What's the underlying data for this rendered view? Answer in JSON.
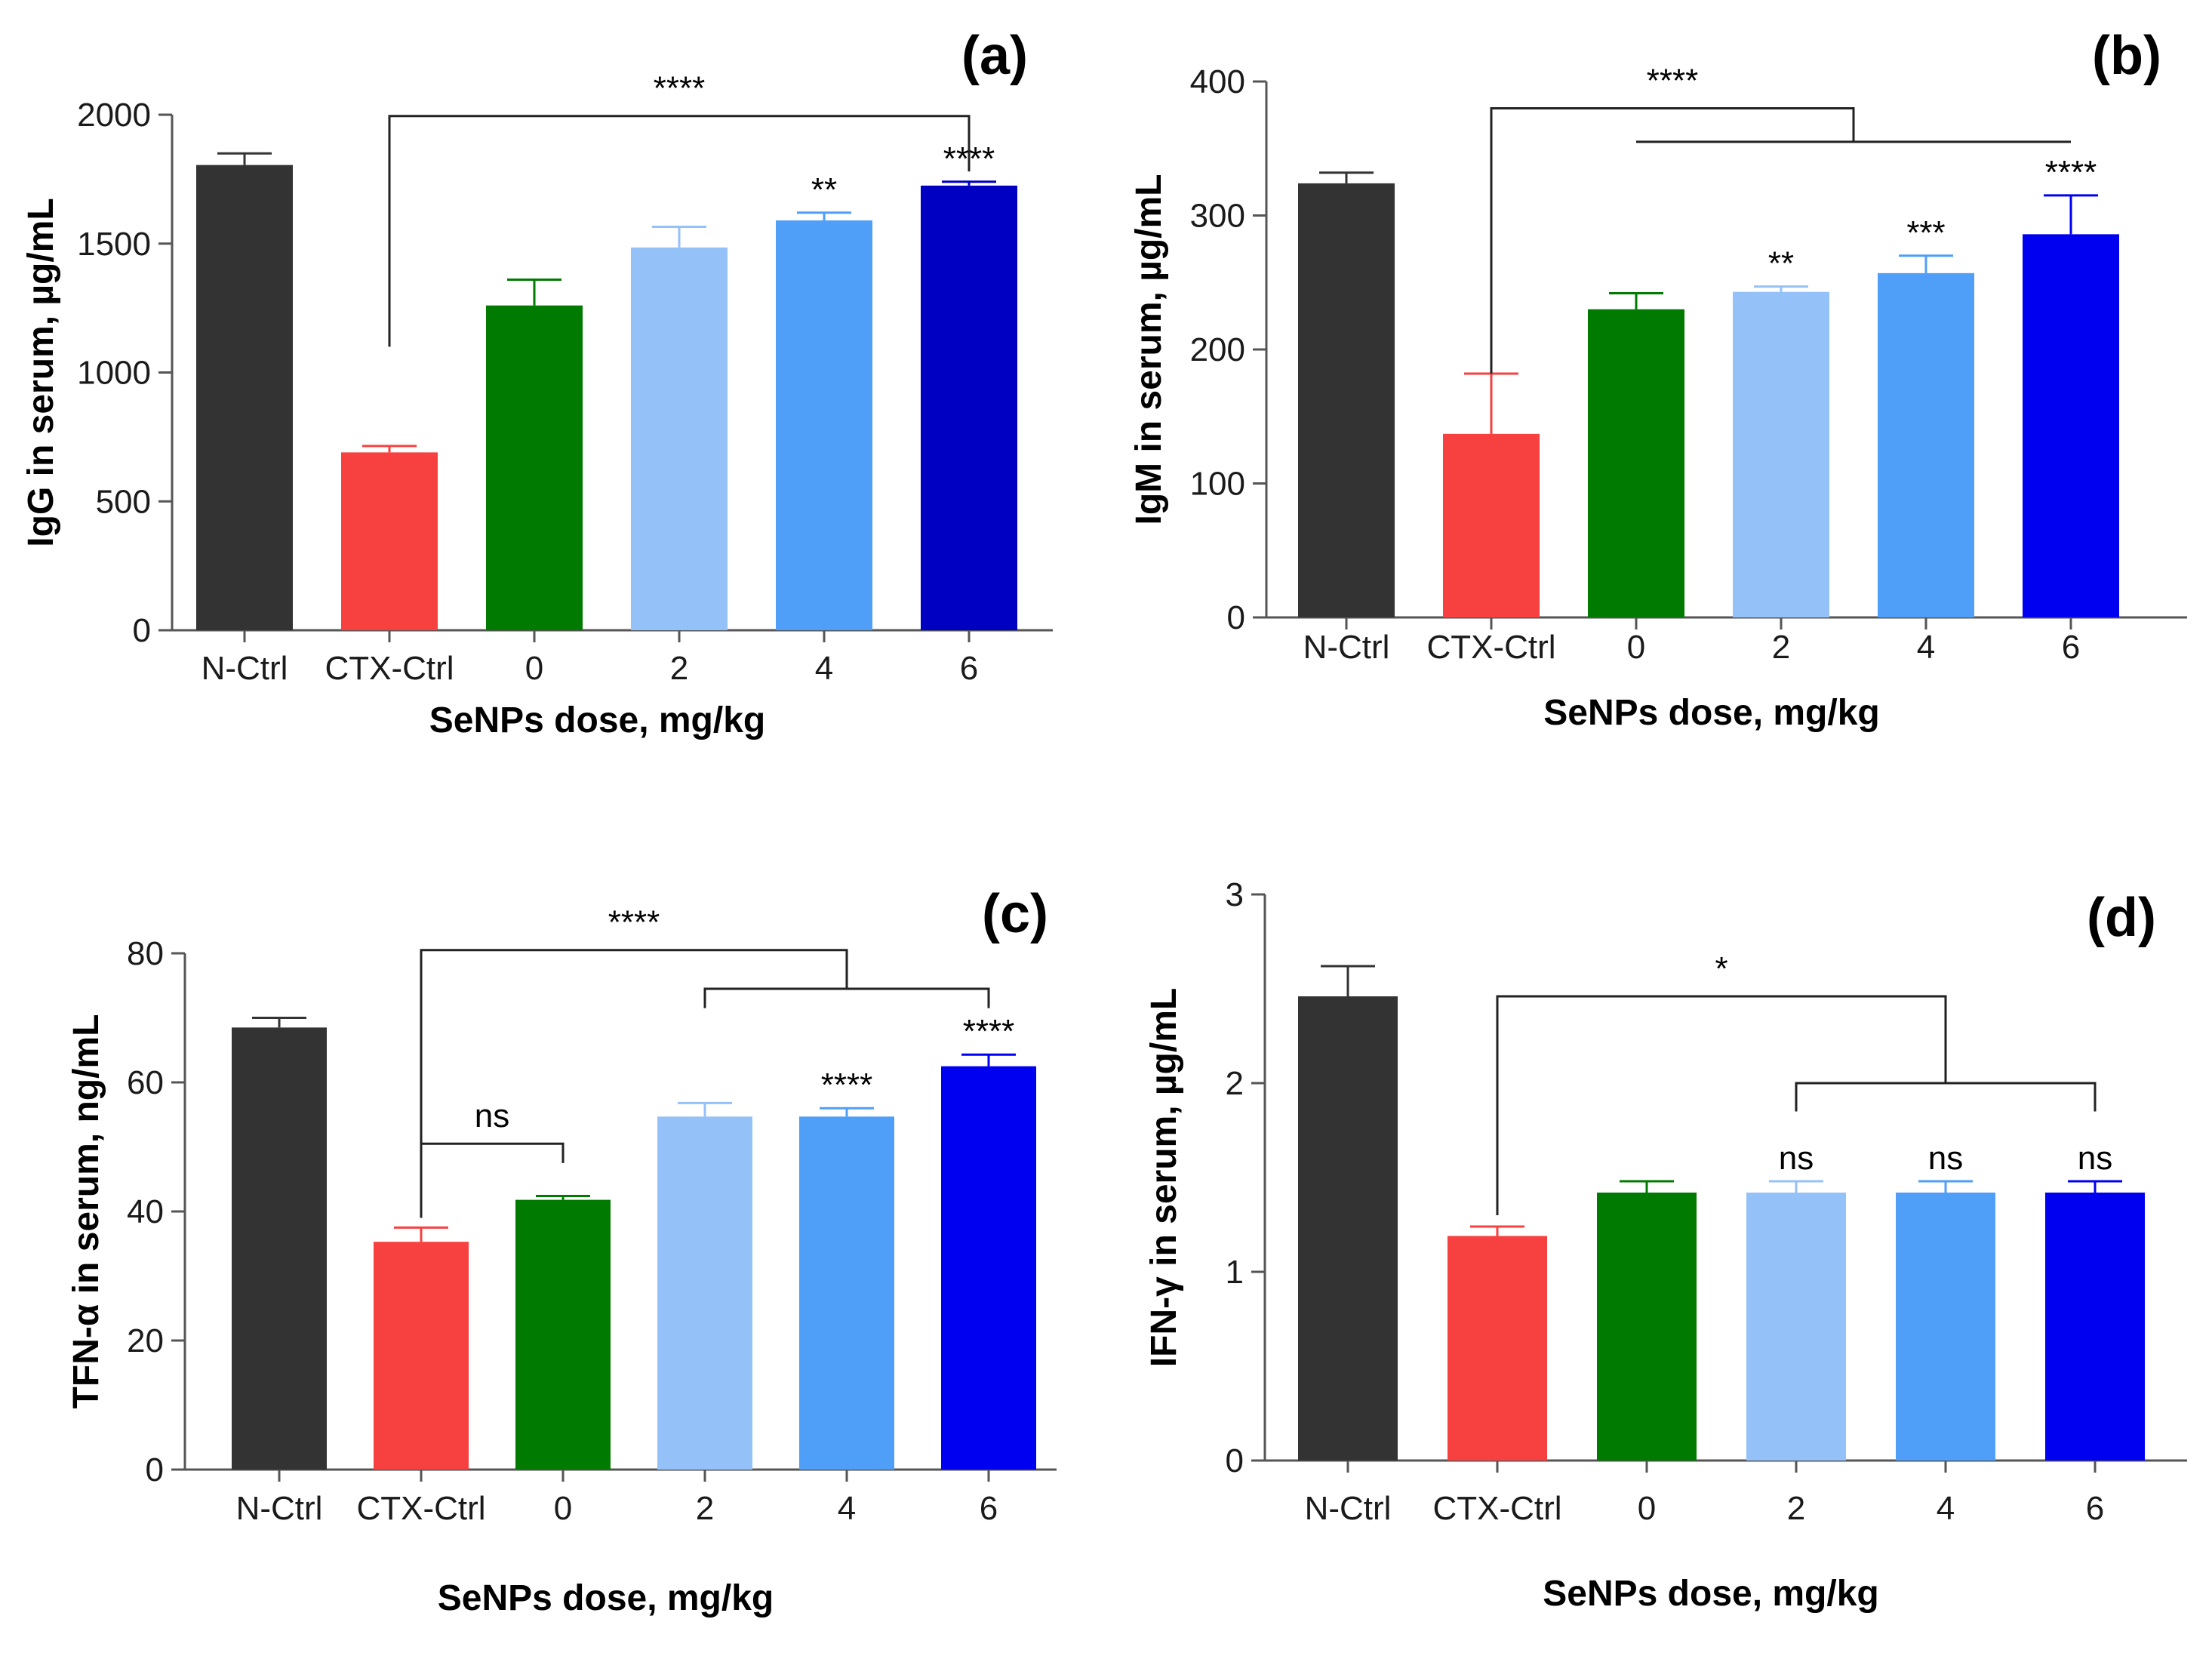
{
  "colors": {
    "N-Ctrl": "#333333",
    "CTX-Ctrl": "#f74141",
    "0": "#007a00",
    "2": "#94c2f8",
    "4": "#4f9ef8",
    "6-dark": "#0000c2",
    "6": "#0000f0"
  },
  "chart_data": [
    {
      "id": "a",
      "type": "bar",
      "panel_label": "(a)",
      "xlabel": "SeNPs dose, mg/kg",
      "ylabel": "IgG in serum, µg/mL",
      "categories": [
        "N-Ctrl",
        "CTX-Ctrl",
        "0",
        "2",
        "4",
        "6"
      ],
      "values": [
        1805,
        690,
        1260,
        1485,
        1590,
        1725
      ],
      "errors": [
        45,
        25,
        100,
        80,
        30,
        15
      ],
      "bar_colors": [
        "#333333",
        "#f74141",
        "#007a00",
        "#94c2f8",
        "#4f9ef8",
        "#0000c2"
      ],
      "ylim": [
        0,
        2000
      ],
      "yticks": [
        0,
        500,
        1000,
        1500,
        2000
      ],
      "annotations": [
        {
          "index": 4,
          "text": "**"
        },
        {
          "index": 5,
          "text": "****"
        }
      ],
      "brackets": [
        {
          "type": "simple",
          "from": 1,
          "to": 5,
          "text": "****",
          "y": 1995,
          "from_drop": 1100,
          "to_drop": 1780
        }
      ]
    },
    {
      "id": "b",
      "type": "bar",
      "panel_label": "(b)",
      "xlabel": "SeNPs dose, mg/kg",
      "ylabel": "IgM in serum, µg/mL",
      "categories": [
        "N-Ctrl",
        "CTX-Ctrl",
        "0",
        "2",
        "4",
        "6"
      ],
      "values": [
        324,
        137,
        230,
        243,
        257,
        286
      ],
      "errors": [
        8,
        45,
        12,
        4,
        13,
        29
      ],
      "bar_colors": [
        "#333333",
        "#f74141",
        "#007a00",
        "#94c2f8",
        "#4f9ef8",
        "#0000f0"
      ],
      "ylim": [
        0,
        400
      ],
      "yticks": [
        0,
        100,
        200,
        300,
        400
      ],
      "annotations": [
        {
          "index": 3,
          "text": "**"
        },
        {
          "index": 4,
          "text": "***"
        },
        {
          "index": 5,
          "text": "****"
        }
      ],
      "brackets": [
        {
          "type": "group",
          "from": 1,
          "group_from": 2,
          "group_to": 5,
          "text": "****",
          "y": 380,
          "group_y": 355,
          "from_drop": 182
        }
      ]
    },
    {
      "id": "c",
      "type": "bar",
      "panel_label": "(c)",
      "xlabel": "SeNPs dose, mg/kg",
      "ylabel": "TFN-α  in serum, ng/mL",
      "categories": [
        "N-Ctrl",
        "CTX-Ctrl",
        "0",
        "2",
        "4",
        "6"
      ],
      "values": [
        68.5,
        35.3,
        41.8,
        54.7,
        54.7,
        62.5
      ],
      "errors": [
        1.5,
        2.2,
        0.6,
        2.1,
        1.3,
        1.8
      ],
      "bar_colors": [
        "#333333",
        "#f74141",
        "#007a00",
        "#94c2f8",
        "#4f9ef8",
        "#0000f0"
      ],
      "ylim": [
        0,
        80
      ],
      "yticks": [
        0,
        20,
        40,
        60,
        80
      ],
      "annotations": [
        {
          "index": 4,
          "text": "****"
        },
        {
          "index": 5,
          "text": "****"
        }
      ],
      "brackets": [
        {
          "type": "group",
          "from": 1,
          "group_from": 3,
          "group_to": 5,
          "text": "****",
          "y": 80.5,
          "group_y": 74.5,
          "from_drop": 39,
          "group_drop": 71.5
        },
        {
          "type": "simple",
          "from": 1,
          "to": 2,
          "text": "ns",
          "y": 50.5,
          "from_drop": 47.5,
          "to_drop": 47.5
        }
      ]
    },
    {
      "id": "d",
      "type": "bar",
      "panel_label": "(d)",
      "xlabel": "SeNPs dose, mg/kg",
      "ylabel": "IFN-γ in serum, µg/mL",
      "categories": [
        "N-Ctrl",
        "CTX-Ctrl",
        "0",
        "2",
        "4",
        "6"
      ],
      "values": [
        2.46,
        1.19,
        1.42,
        1.42,
        1.42,
        1.42
      ],
      "errors": [
        0.16,
        0.05,
        0.06,
        0.06,
        0.06,
        0.06
      ],
      "bar_colors": [
        "#333333",
        "#f74141",
        "#007a00",
        "#94c2f8",
        "#4f9ef8",
        "#0000f0"
      ],
      "ylim": [
        0,
        3
      ],
      "yticks": [
        0,
        1,
        2,
        3
      ],
      "annotations": [
        {
          "index": 3,
          "text": "ns"
        },
        {
          "index": 4,
          "text": "ns"
        },
        {
          "index": 5,
          "text": "ns"
        }
      ],
      "brackets": [
        {
          "type": "group",
          "from": 1,
          "group_from": 3,
          "group_to": 5,
          "text": "*",
          "y": 2.46,
          "group_y": 2.0,
          "from_drop": 1.3,
          "group_drop": 1.85
        }
      ]
    }
  ]
}
